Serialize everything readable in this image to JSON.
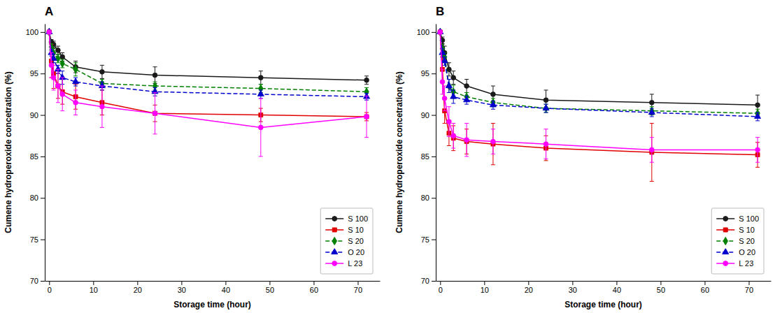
{
  "chart_data": [
    {
      "type": "line",
      "title": "A",
      "x_label": "Storage time (hour)",
      "y_label": "Cumene hydroperoxide concetration (%)",
      "x": [
        0,
        0.5,
        1,
        2,
        3,
        6,
        12,
        24,
        48,
        72
      ],
      "series": [
        {
          "name": "S 100",
          "color": "#1a1a1a",
          "marker": "circle",
          "line_style": "solid",
          "values": [
            100,
            98.8,
            98.5,
            97.8,
            97.0,
            95.8,
            95.2,
            94.8,
            94.5,
            94.2
          ],
          "errors": [
            0.2,
            0.3,
            0.4,
            0.5,
            0.5,
            0.7,
            0.8,
            1.0,
            0.8,
            0.5
          ]
        },
        {
          "name": "S 10",
          "color": "#e00000",
          "marker": "square",
          "line_style": "solid",
          "values": [
            100,
            96.5,
            95.0,
            93.5,
            92.8,
            92.2,
            91.5,
            90.2,
            90.0,
            89.8
          ],
          "errors": [
            0.2,
            2.0,
            1.8,
            1.5,
            1.5,
            1.5,
            1.5,
            1.0,
            0.8,
            0.5
          ]
        },
        {
          "name": "S 20",
          "color": "#008000",
          "marker": "diamond",
          "line_style": "dashed",
          "values": [
            100,
            98.2,
            97.5,
            96.8,
            96.2,
            95.5,
            93.8,
            93.5,
            93.2,
            92.8
          ],
          "errors": [
            0.2,
            0.4,
            0.5,
            0.5,
            0.5,
            0.8,
            0.5,
            0.5,
            0.5,
            0.5
          ]
        },
        {
          "name": "O 20",
          "color": "#0000cc",
          "marker": "triangle-up",
          "line_style": "dashed",
          "values": [
            100,
            97.5,
            96.8,
            95.5,
            94.5,
            94.0,
            93.5,
            92.8,
            92.5,
            92.2
          ],
          "errors": [
            0.2,
            0.4,
            0.5,
            0.5,
            0.8,
            0.5,
            0.5,
            0.5,
            0.5,
            0.4
          ]
        },
        {
          "name": "L 23",
          "color": "#ff00ff",
          "marker": "circle",
          "line_style": "solid",
          "values": [
            100,
            96.0,
            94.5,
            93.5,
            92.5,
            91.5,
            91.0,
            90.2,
            88.5,
            89.8
          ],
          "errors": [
            0.2,
            1.5,
            1.5,
            2.0,
            2.0,
            1.5,
            2.5,
            2.5,
            3.5,
            2.5
          ]
        }
      ],
      "xlim": [
        -1,
        75
      ],
      "xticks": [
        0,
        10,
        20,
        30,
        40,
        50,
        60,
        70
      ],
      "ylim": [
        70,
        101
      ],
      "yticks": [
        70,
        75,
        80,
        85,
        90,
        95,
        100
      ],
      "grid": false,
      "legend": "lower right"
    },
    {
      "type": "line",
      "title": "B",
      "x_label": "Storage time (hour)",
      "y_label": "Cumene hydroperoxide concetration (%)",
      "x": [
        0,
        0.5,
        1,
        2,
        3,
        6,
        12,
        24,
        48,
        72
      ],
      "series": [
        {
          "name": "S 100",
          "color": "#1a1a1a",
          "marker": "circle",
          "line_style": "solid",
          "values": [
            100,
            99.0,
            97.5,
            95.5,
            94.5,
            93.5,
            92.5,
            91.8,
            91.5,
            91.2
          ],
          "errors": [
            0.2,
            0.4,
            0.8,
            0.8,
            0.8,
            0.8,
            1.0,
            1.2,
            1.0,
            1.2
          ]
        },
        {
          "name": "S 10",
          "color": "#e00000",
          "marker": "square",
          "line_style": "solid",
          "values": [
            100,
            95.5,
            90.5,
            87.8,
            87.2,
            86.8,
            86.5,
            86.0,
            85.5,
            85.2
          ],
          "errors": [
            0.2,
            1.5,
            1.5,
            1.5,
            1.5,
            1.5,
            2.5,
            1.5,
            3.5,
            1.5
          ]
        },
        {
          "name": "S 20",
          "color": "#008000",
          "marker": "diamond",
          "line_style": "dashed",
          "values": [
            100,
            98.0,
            97.0,
            93.5,
            92.8,
            92.2,
            91.5,
            90.8,
            90.5,
            90.2
          ],
          "errors": [
            0.2,
            0.5,
            0.5,
            0.8,
            0.8,
            0.5,
            0.5,
            0.5,
            0.5,
            0.5
          ]
        },
        {
          "name": "O 20",
          "color": "#0000cc",
          "marker": "triangle-up",
          "line_style": "dashed",
          "values": [
            100,
            97.5,
            96.5,
            93.5,
            92.2,
            91.8,
            91.2,
            90.8,
            90.3,
            89.8
          ],
          "errors": [
            0.2,
            0.5,
            0.5,
            0.8,
            0.8,
            0.5,
            0.5,
            0.5,
            0.5,
            0.5
          ]
        },
        {
          "name": "L 23",
          "color": "#ff00ff",
          "marker": "circle",
          "line_style": "solid",
          "values": [
            100,
            94.0,
            92.0,
            89.2,
            87.5,
            87.0,
            86.8,
            86.5,
            85.8,
            85.8
          ],
          "errors": [
            0.2,
            1.5,
            1.5,
            1.8,
            1.5,
            2.0,
            1.5,
            1.8,
            1.5,
            1.5
          ]
        }
      ],
      "xlim": [
        -1,
        75
      ],
      "xticks": [
        0,
        10,
        20,
        30,
        40,
        50,
        60,
        70
      ],
      "ylim": [
        70,
        101
      ],
      "yticks": [
        70,
        75,
        80,
        85,
        90,
        95,
        100
      ],
      "grid": false,
      "legend": "lower right"
    }
  ]
}
